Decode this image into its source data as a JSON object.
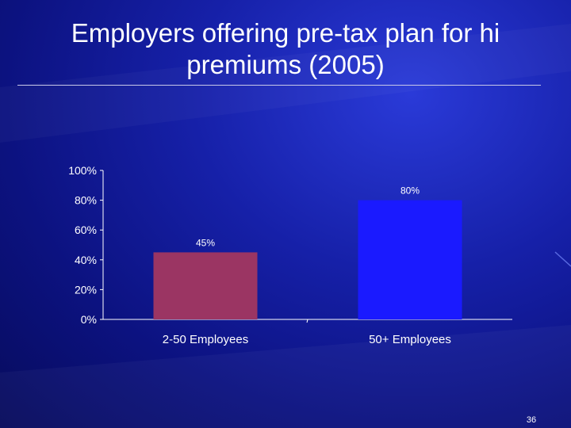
{
  "slide": {
    "title": "Employers offering pre-tax plan for hi premiums (2005)",
    "page_number": "36"
  },
  "colors": {
    "background": "#0c1280",
    "bar_small": "#9b3563",
    "bar_large": "#1a1aff",
    "axis": "#ffffff",
    "text": "#ffffff"
  },
  "chart_data": {
    "type": "bar",
    "title": "",
    "xlabel": "",
    "ylabel": "",
    "categories": [
      "2-50 Employees",
      "50+ Employees"
    ],
    "values": [
      45,
      80
    ],
    "data_labels": [
      "45%",
      "80%"
    ],
    "bar_colors": [
      "#9b3563",
      "#1a1aff"
    ],
    "ylim": [
      0,
      100
    ],
    "yticks": [
      0,
      20,
      40,
      60,
      80,
      100
    ],
    "ytick_labels": [
      "0%",
      "20%",
      "40%",
      "60%",
      "80%",
      "100%"
    ],
    "grid": false,
    "legend": "none"
  }
}
